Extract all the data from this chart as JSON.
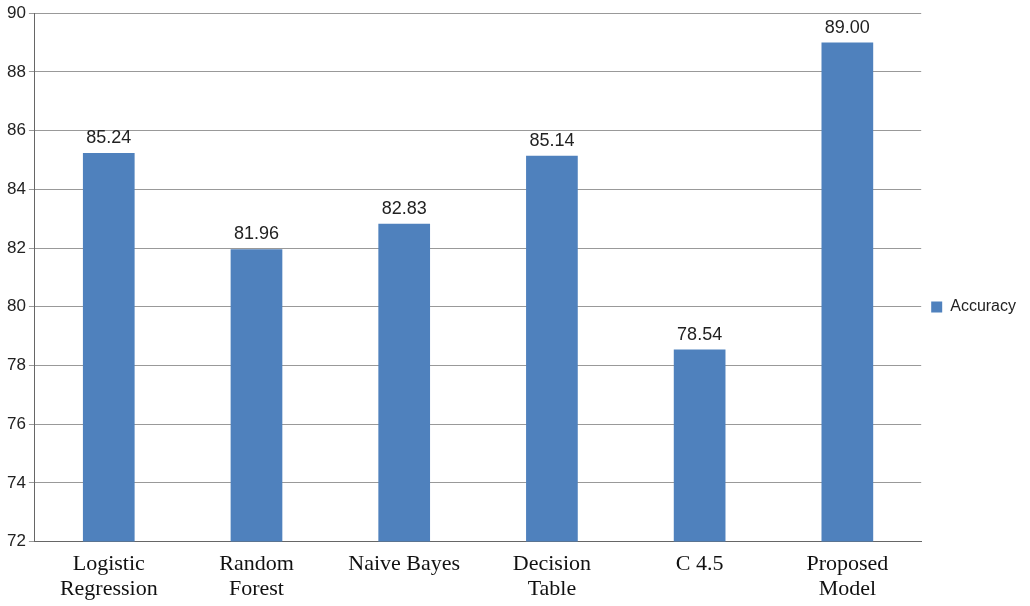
{
  "chart_data": {
    "type": "bar",
    "categories": [
      "Logistic Regression",
      "Random Forest",
      "Naive Bayes",
      "Decision Table",
      "C 4.5",
      "Proposed Model"
    ],
    "series": [
      {
        "name": "Accuracy",
        "color": "#4f81bd",
        "values": [
          85.24,
          81.96,
          82.83,
          85.14,
          78.54,
          89.0
        ],
        "value_labels": [
          "85.24",
          "81.96",
          "82.83",
          "85.14",
          "78.54",
          "89.00"
        ]
      }
    ],
    "ylim": [
      72,
      90
    ],
    "yticks": [
      72,
      74,
      76,
      78,
      80,
      82,
      84,
      86,
      88,
      90
    ],
    "grid": "y",
    "legend": "right"
  }
}
